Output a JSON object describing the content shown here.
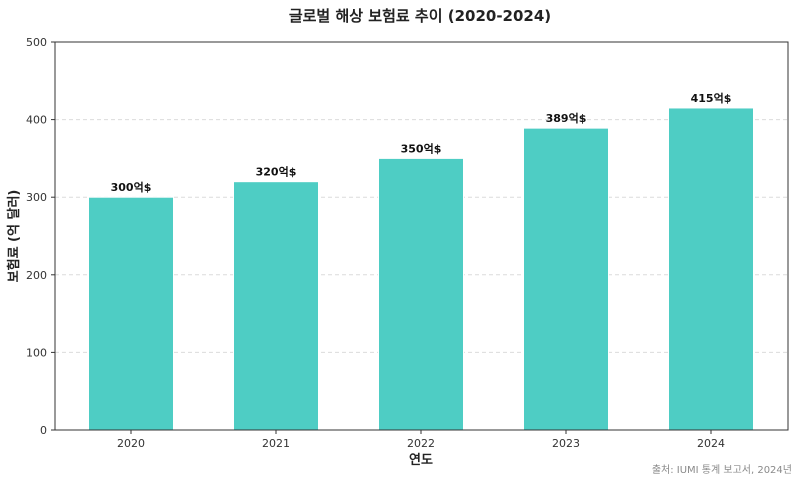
{
  "chart_data": {
    "type": "bar",
    "title": "글로벌 해상 보험료 추이 (2020-2024)",
    "xlabel": "연도",
    "ylabel": "보험료 (억 달러)",
    "categories": [
      "2020",
      "2021",
      "2022",
      "2023",
      "2024"
    ],
    "values": [
      300,
      320,
      350,
      389,
      415
    ],
    "data_labels": [
      "300억$",
      "320억$",
      "350억$",
      "389억$",
      "415억$"
    ],
    "ylim": [
      0,
      500
    ],
    "yticks": [
      0,
      100,
      200,
      300,
      400,
      500
    ],
    "bar_color": "#4ECDC4",
    "grid": "y-dashed",
    "source": "출처: IUMI 통계 보고서, 2024년"
  }
}
